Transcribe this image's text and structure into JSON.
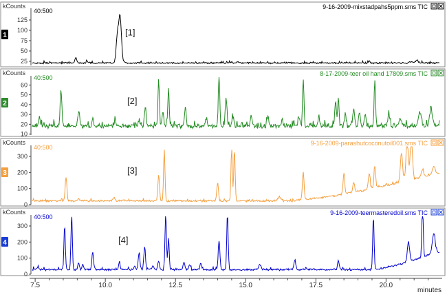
{
  "chart_data": [
    {
      "type": "line",
      "panel_id": "1",
      "y_unit": "kCounts",
      "scan_range": "40:500",
      "file_label": "9-16-2009-mixstadpahs5ppm.sms TIC",
      "annotation": "[1]",
      "color": "#000000",
      "badge_color": "#000000",
      "ylim": [
        15,
        150
      ],
      "yticks": [
        25,
        50,
        75,
        100,
        125
      ],
      "baseline": 20,
      "noise": 1.2,
      "peaks": [
        [
          8.95,
          13,
          0.03
        ],
        [
          9.35,
          5,
          0.03
        ],
        [
          10.52,
          115,
          0.05
        ],
        [
          10.42,
          55,
          0.04
        ],
        [
          11.15,
          2,
          0.03
        ],
        [
          14.7,
          3,
          0.03
        ],
        [
          19.4,
          5,
          0.03
        ],
        [
          20.9,
          4,
          0.05
        ],
        [
          21.1,
          6,
          0.05
        ]
      ]
    },
    {
      "type": "line",
      "panel_id": "2",
      "y_unit": "kCounts",
      "scan_range": "40:500",
      "file_label": "8-17-2009-teer oil hand 17809.sms TIC",
      "annotation": "[2]",
      "color": "#228b22",
      "badge_color": "#2e8b2e",
      "ylim": [
        9,
        68
      ],
      "yticks": [
        10,
        20,
        30,
        40,
        50,
        60
      ],
      "baseline": 17,
      "noise": 1.5,
      "peaks": [
        [
          7.65,
          8,
          0.03
        ],
        [
          8.42,
          38,
          0.03
        ],
        [
          9.05,
          15,
          0.03
        ],
        [
          9.55,
          8,
          0.03
        ],
        [
          10.35,
          6,
          0.03
        ],
        [
          11.2,
          7,
          0.03
        ],
        [
          11.42,
          18,
          0.03
        ],
        [
          11.9,
          48,
          0.025
        ],
        [
          12.05,
          15,
          0.03
        ],
        [
          12.25,
          40,
          0.025
        ],
        [
          12.85,
          20,
          0.03
        ],
        [
          13.6,
          8,
          0.03
        ],
        [
          14.05,
          55,
          0.025
        ],
        [
          14.3,
          30,
          0.03
        ],
        [
          14.55,
          10,
          0.03
        ],
        [
          15.2,
          10,
          0.03
        ],
        [
          15.8,
          9,
          0.03
        ],
        [
          16.3,
          8,
          0.03
        ],
        [
          16.9,
          8,
          0.03
        ],
        [
          17.05,
          50,
          0.025
        ],
        [
          17.6,
          8,
          0.03
        ],
        [
          18.2,
          25,
          0.03
        ],
        [
          18.3,
          30,
          0.025
        ],
        [
          18.55,
          12,
          0.03
        ],
        [
          18.85,
          18,
          0.03
        ],
        [
          19.05,
          15,
          0.03
        ],
        [
          19.25,
          13,
          0.03
        ],
        [
          19.6,
          48,
          0.025
        ],
        [
          20.1,
          10,
          0.04
        ],
        [
          20.5,
          8,
          0.04
        ],
        [
          21.2,
          14,
          0.05
        ],
        [
          21.6,
          18,
          0.05
        ]
      ]
    },
    {
      "type": "line",
      "panel_id": "3",
      "y_unit": "kCounts",
      "scan_range": "40:500",
      "file_label": "9-16-2009-parashutcoconutoil001.sms TIC",
      "annotation": "[3]",
      "color": "#f4a040",
      "badge_color": "#f4a040",
      "ylim": [
        0,
        360
      ],
      "yticks": [
        0,
        100,
        200,
        300
      ],
      "baseline": 20,
      "noise": 4,
      "humps": [
        [
          16.5,
          21.8,
          170
        ]
      ],
      "peaks": [
        [
          8.6,
          150,
          0.03
        ],
        [
          9.05,
          15,
          0.03
        ],
        [
          10.3,
          20,
          0.04
        ],
        [
          11.9,
          160,
          0.03
        ],
        [
          12.1,
          320,
          0.025
        ],
        [
          14.0,
          110,
          0.03
        ],
        [
          14.5,
          320,
          0.025
        ],
        [
          14.6,
          320,
          0.025
        ],
        [
          16.2,
          25,
          0.05
        ],
        [
          17.05,
          170,
          0.03
        ],
        [
          18.5,
          130,
          0.03
        ],
        [
          18.85,
          60,
          0.03
        ],
        [
          19.4,
          100,
          0.03
        ],
        [
          19.6,
          130,
          0.03
        ],
        [
          20.55,
          180,
          0.04
        ],
        [
          20.75,
          260,
          0.04
        ],
        [
          20.9,
          270,
          0.04
        ],
        [
          21.3,
          40,
          0.05
        ],
        [
          21.7,
          50,
          0.05
        ]
      ]
    },
    {
      "type": "line",
      "panel_id": "4",
      "y_unit": "kCounts",
      "scan_range": "40:500",
      "file_label": "9-16-2009-teermasteredoil.sms TIC",
      "annotation": "[4]",
      "color": "#0000cd",
      "badge_color": "#1a3dd8",
      "ylim": [
        0,
        360
      ],
      "yticks": [
        0,
        100,
        200,
        300
      ],
      "baseline": 25,
      "noise": 4,
      "humps": [
        [
          19.5,
          21.8,
          110
        ]
      ],
      "peaks": [
        [
          7.6,
          20,
          0.03
        ],
        [
          8.55,
          280,
          0.025
        ],
        [
          8.8,
          330,
          0.025
        ],
        [
          9.05,
          40,
          0.03
        ],
        [
          9.2,
          30,
          0.03
        ],
        [
          9.55,
          110,
          0.03
        ],
        [
          10.5,
          40,
          0.03
        ],
        [
          11.05,
          20,
          0.03
        ],
        [
          11.2,
          100,
          0.03
        ],
        [
          11.4,
          140,
          0.03
        ],
        [
          11.7,
          25,
          0.03
        ],
        [
          11.9,
          50,
          0.03
        ],
        [
          12.15,
          350,
          0.025
        ],
        [
          12.25,
          200,
          0.025
        ],
        [
          12.8,
          45,
          0.03
        ],
        [
          13.0,
          30,
          0.03
        ],
        [
          13.4,
          40,
          0.03
        ],
        [
          14.05,
          180,
          0.03
        ],
        [
          14.35,
          350,
          0.025
        ],
        [
          15.5,
          30,
          0.04
        ],
        [
          16.75,
          60,
          0.03
        ],
        [
          18.3,
          60,
          0.03
        ],
        [
          19.55,
          330,
          0.025
        ],
        [
          20.8,
          120,
          0.04
        ],
        [
          21.3,
          330,
          0.025
        ],
        [
          21.7,
          120,
          0.05
        ]
      ]
    }
  ],
  "x_axis": {
    "range": [
      7.35,
      22.0
    ],
    "ticks": [
      7.5,
      10.0,
      12.5,
      15.0,
      17.5,
      20.0
    ],
    "tick_labels": [
      "7.5",
      "10.0",
      "12.5",
      "15.0",
      "17.5",
      "20.0"
    ],
    "label": "minutes"
  }
}
